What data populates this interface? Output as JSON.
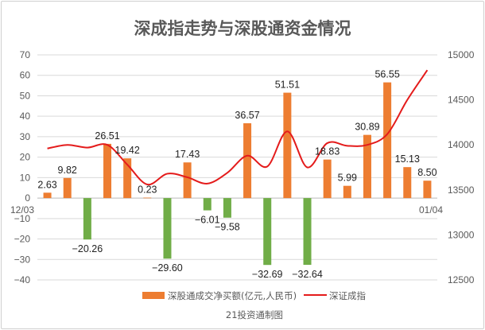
{
  "chart_data": {
    "type": "bar",
    "title": "深成指走势与深股通资金情况",
    "source": "21投资通制图",
    "x_start_label": "12/03",
    "x_end_label": "01/04",
    "left_axis": {
      "ylim": [
        -40,
        70
      ],
      "ticks": [
        -40,
        -30,
        -20,
        -10,
        0,
        10,
        20,
        30,
        40,
        50,
        60,
        70
      ]
    },
    "right_axis": {
      "ylim": [
        12500,
        15000
      ],
      "ticks": [
        12500,
        13000,
        13500,
        14000,
        14500,
        15000
      ]
    },
    "series": [
      {
        "name": "深股通成交净买额(亿元,人民币)",
        "type": "bar",
        "values": [
          2.63,
          9.82,
          -20.26,
          26.51,
          19.42,
          0.23,
          -29.6,
          17.43,
          -6.01,
          -9.58,
          36.57,
          -32.69,
          51.51,
          -32.64,
          18.83,
          5.99,
          30.89,
          56.55,
          15.13,
          8.5
        ],
        "labels": [
          "2.63",
          "9.82",
          "−20.26",
          "26.51",
          "19.42",
          "0.23",
          "−29.60",
          "17.43",
          "−6.01",
          "−9.58",
          "36.57",
          "−32.69",
          "51.51",
          "−32.64",
          "18.83",
          "5.99",
          "30.89",
          "56.55",
          "15.13",
          "8.50"
        ]
      },
      {
        "name": "深证成指",
        "type": "line",
        "values": [
          13960,
          14000,
          13970,
          14000,
          13780,
          13560,
          13680,
          13640,
          13570,
          13690,
          13880,
          13760,
          14150,
          13750,
          14020,
          13990,
          14000,
          14120,
          14500,
          14830
        ]
      }
    ],
    "colors": {
      "positive_bar": "#ed7d31",
      "negative_bar": "#70ad47",
      "line": "#e41b1b",
      "axis_text": "#595959",
      "grid": "#d9d9d9"
    }
  }
}
